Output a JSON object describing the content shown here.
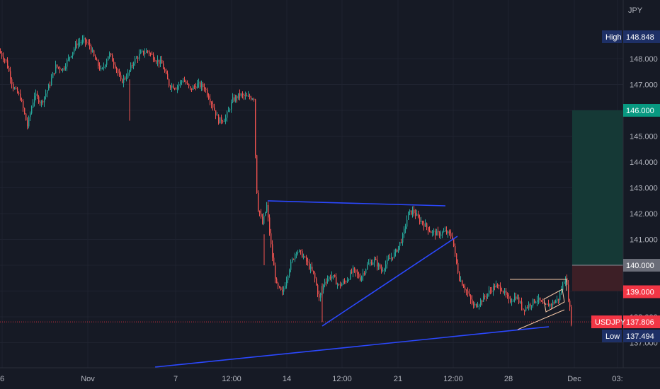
{
  "chart_data": {
    "type": "candlestick",
    "symbol": "USDJPY",
    "unit": "JPY",
    "y_range": [
      136.7,
      149.1
    ],
    "y_ticks": [
      137.0,
      138.0,
      139.0,
      140.0,
      141.0,
      142.0,
      143.0,
      144.0,
      145.0,
      146.0,
      147.0,
      148.0
    ],
    "y_tick_labels": [
      "137.000",
      "138.000",
      "139.000",
      "140.000",
      "141.000",
      "142.000",
      "143.000",
      "144.000",
      "145.000",
      "146.000",
      "147.000",
      "148.000"
    ],
    "x_ticks": [
      {
        "label": "6"
      },
      {
        "label": "Nov"
      },
      {
        "label": "7"
      },
      {
        "label": "12:00"
      },
      {
        "label": "14"
      },
      {
        "label": "12:00"
      },
      {
        "label": "21"
      },
      {
        "label": "12:00"
      },
      {
        "label": "28"
      },
      {
        "label": "Dec"
      },
      {
        "label": "03:"
      }
    ],
    "price_path": [
      [
        0,
        148.3
      ],
      [
        10,
        147.9
      ],
      [
        20,
        146.9
      ],
      [
        30,
        146.5
      ],
      [
        40,
        145.4
      ],
      [
        50,
        146.6
      ],
      [
        60,
        146.3
      ],
      [
        70,
        146.9
      ],
      [
        80,
        147.7
      ],
      [
        90,
        147.6
      ],
      [
        100,
        148.1
      ],
      [
        110,
        148.6
      ],
      [
        120,
        148.7
      ],
      [
        128,
        148.5
      ],
      [
        135,
        148.0
      ],
      [
        145,
        147.5
      ],
      [
        155,
        148.2
      ],
      [
        165,
        147.7
      ],
      [
        172,
        147.1
      ],
      [
        182,
        147.4
      ],
      [
        190,
        147.9
      ],
      [
        200,
        148.2
      ],
      [
        210,
        148.3
      ],
      [
        220,
        148.0
      ],
      [
        230,
        147.8
      ],
      [
        240,
        147.0
      ],
      [
        250,
        146.9
      ],
      [
        260,
        147.2
      ],
      [
        270,
        146.8
      ],
      [
        280,
        147.0
      ],
      [
        290,
        146.9
      ],
      [
        300,
        146.3
      ],
      [
        310,
        145.6
      ],
      [
        320,
        145.7
      ],
      [
        330,
        146.4
      ],
      [
        340,
        146.6
      ],
      [
        350,
        146.5
      ],
      [
        360,
        146.5
      ],
      [
        363,
        143.2
      ],
      [
        366,
        142.2
      ],
      [
        372,
        141.6
      ],
      [
        378,
        142.3
      ],
      [
        385,
        140.5
      ],
      [
        392,
        139.2
      ],
      [
        400,
        138.9
      ],
      [
        410,
        139.9
      ],
      [
        420,
        140.6
      ],
      [
        428,
        140.4
      ],
      [
        435,
        140.1
      ],
      [
        445,
        139.6
      ],
      [
        452,
        138.7
      ],
      [
        460,
        139.4
      ],
      [
        470,
        139.6
      ],
      [
        480,
        139.2
      ],
      [
        490,
        139.4
      ],
      [
        500,
        139.8
      ],
      [
        510,
        139.5
      ],
      [
        520,
        140.0
      ],
      [
        530,
        140.2
      ],
      [
        540,
        139.8
      ],
      [
        550,
        140.2
      ],
      [
        560,
        140.5
      ],
      [
        570,
        141.1
      ],
      [
        578,
        142.0
      ],
      [
        585,
        142.1
      ],
      [
        592,
        141.8
      ],
      [
        600,
        141.6
      ],
      [
        610,
        141.3
      ],
      [
        620,
        141.2
      ],
      [
        630,
        141.3
      ],
      [
        640,
        141.1
      ],
      [
        645,
        140.2
      ],
      [
        650,
        139.5
      ],
      [
        660,
        139.0
      ],
      [
        670,
        138.4
      ],
      [
        680,
        138.6
      ],
      [
        690,
        138.9
      ],
      [
        700,
        139.2
      ],
      [
        710,
        139.1
      ],
      [
        720,
        138.6
      ],
      [
        730,
        138.8
      ],
      [
        740,
        138.3
      ],
      [
        750,
        138.5
      ],
      [
        760,
        138.7
      ],
      [
        770,
        138.4
      ],
      [
        780,
        138.5
      ],
      [
        790,
        138.7
      ],
      [
        800,
        139.6
      ],
      [
        806,
        138.3
      ],
      [
        808,
        137.8
      ]
    ],
    "high": {
      "label": "High",
      "value": "148.848"
    },
    "low": {
      "label": "Low",
      "value": "137.494"
    },
    "current": {
      "label": "USDJPY",
      "value": "137.806"
    },
    "targets": {
      "take_profit": "146.000",
      "entry": "140.000",
      "stop_loss": "139.000"
    },
    "colors": {
      "background": "#161a25",
      "up": "#26a69a",
      "down": "#ef5350",
      "trendline": "#2b48ff",
      "channel": "#f7c9a8",
      "profit_zone": "#153936",
      "loss_zone": "#3d1f26",
      "high_low_tag": "#1e3066",
      "tp_tag": "#089981",
      "entry_tag": "#6a6d78",
      "sl_tag": "#f23645",
      "price_tag": "#f23645"
    }
  }
}
